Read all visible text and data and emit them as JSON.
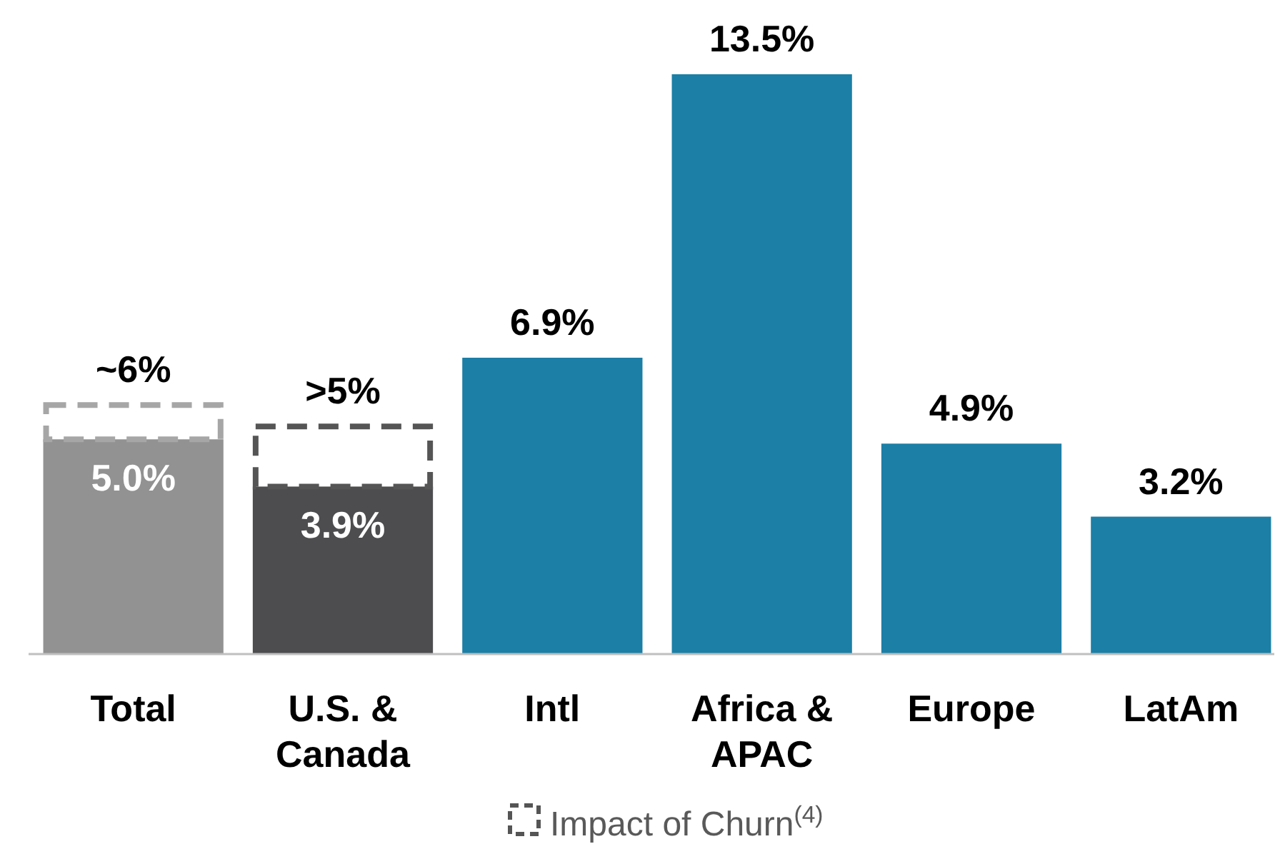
{
  "chart_data": {
    "type": "bar",
    "stacked": true,
    "categories": [
      "Total",
      "U.S. & Canada",
      "Intl",
      "Africa & APAC",
      "Europe",
      "LatAm"
    ],
    "totals": [
      "~6%",
      ">5%",
      null,
      null,
      null,
      null
    ],
    "tick_labels": "x",
    "legend": "bottom",
    "series": [
      {
        "colors": [
          "#929292",
          "#4d4d4f",
          "#1b7fa6",
          "#1b7fa6",
          "#1b7fa6",
          "#1b7fa6"
        ],
        "values": [
          5.0,
          3.9,
          6.9,
          13.5,
          4.9,
          3.2
        ],
        "value_labels": [
          "5.0%",
          "3.9%",
          "6.9%",
          "13.5%",
          "4.9%",
          "3.2%"
        ]
      },
      {
        "name": "Impact of Churn$^{(4)}$",
        "line_style": "dashed",
        "color": "#555555",
        "colors": [
          "#a6a6a6",
          "#555555",
          null,
          null,
          null,
          null
        ],
        "values": [
          0.8,
          1.4,
          null,
          null,
          null,
          null
        ]
      }
    ]
  }
}
